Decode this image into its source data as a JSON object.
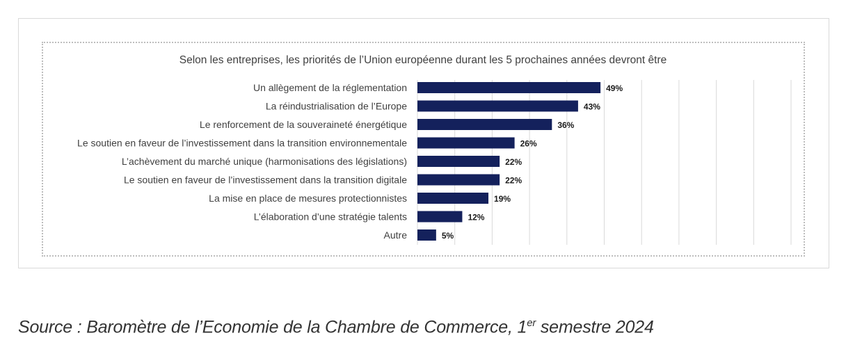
{
  "chart_data": {
    "type": "bar",
    "orientation": "horizontal",
    "title": "Selon les entreprises, les priorités de l’Union européenne durant les 5 prochaines années devront être",
    "categories": [
      "Un allègement de la réglementation",
      "La réindustrialisation de l’Europe",
      "Le renforcement de la souveraineté énergétique",
      "Le soutien en faveur de l’investissement dans la transition environnementale",
      "L’achèvement du marché unique (harmonisations des législations)",
      "Le soutien en faveur de l’investissement dans la transition digitale",
      "La mise en place de mesures protectionnistes",
      "L’élaboration d’une stratégie talents",
      "Autre"
    ],
    "values": [
      49,
      43,
      36,
      26,
      22,
      22,
      19,
      12,
      5
    ],
    "value_labels": [
      "49%",
      "43%",
      "36%",
      "26%",
      "22%",
      "22%",
      "19%",
      "12%",
      "5%"
    ],
    "xlim": [
      0,
      100
    ],
    "grid": true,
    "bar_color": "#14215c"
  },
  "source": {
    "prefix": "Source : Baromètre de l’Economie de la Chambre de Commerce, 1",
    "sup": "er",
    "suffix": " semestre 2024"
  }
}
